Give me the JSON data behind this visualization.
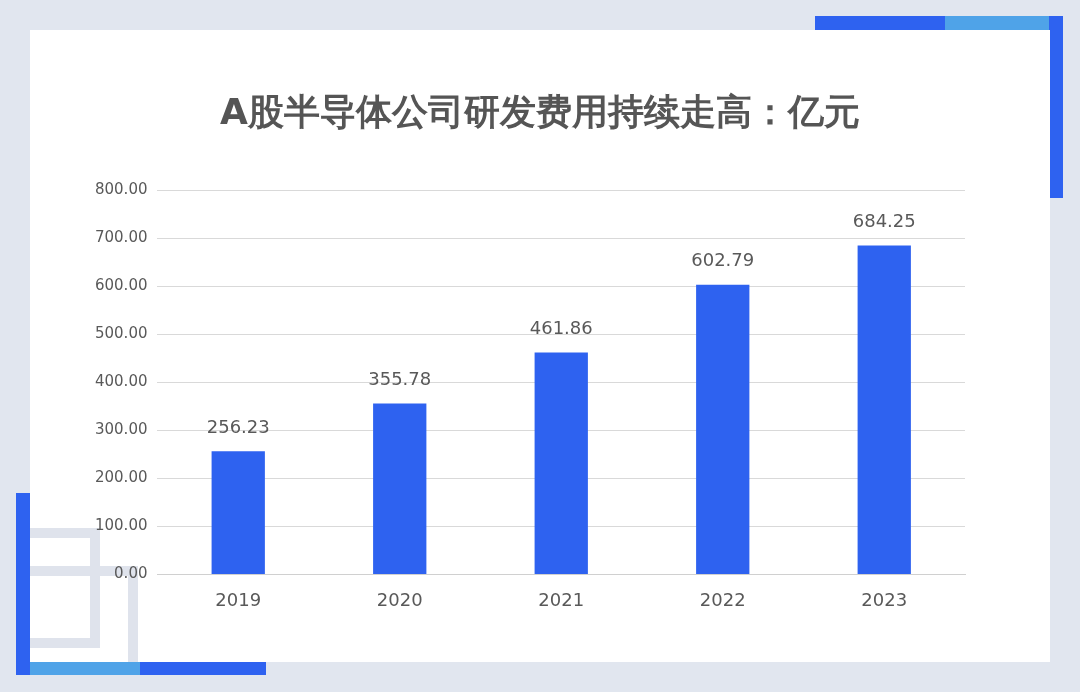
{
  "chart_data": {
    "type": "bar",
    "title": "A股半导体公司研发费用持续走高：亿元",
    "categories": [
      "2019",
      "2020",
      "2021",
      "2022",
      "2023"
    ],
    "values": [
      256.23,
      355.78,
      461.86,
      602.79,
      684.25
    ],
    "color": "#2e62f0",
    "ylim": [
      0,
      800
    ],
    "yticks": [
      {
        "value": 0,
        "label": "0.00"
      },
      {
        "value": 100,
        "label": "100.00"
      },
      {
        "value": 200,
        "label": "200.00"
      },
      {
        "value": 300,
        "label": "300.00"
      },
      {
        "value": 400,
        "label": "400.00"
      },
      {
        "value": 500,
        "label": "500.00"
      },
      {
        "value": 600,
        "label": "600.00"
      },
      {
        "value": 700,
        "label": "700.00"
      },
      {
        "value": 800,
        "label": "800.00"
      }
    ],
    "grid": "y",
    "data_labels": true,
    "legend": false
  }
}
